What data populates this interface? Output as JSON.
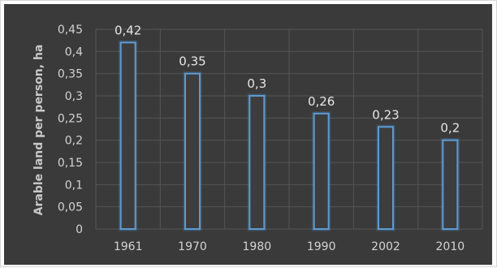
{
  "chart_data": {
    "type": "bar",
    "title": "",
    "xlabel": "",
    "ylabel": "Arable land per person, ha",
    "categories": [
      "1961",
      "1970",
      "1980",
      "1990",
      "2002",
      "2010"
    ],
    "values": [
      0.42,
      0.35,
      0.3,
      0.26,
      0.23,
      0.2
    ],
    "data_labels": [
      "0,42",
      "0,35",
      "0,3",
      "0,26",
      "0,23",
      "0,2"
    ],
    "yticks": [
      0,
      0.05,
      0.1,
      0.15,
      0.2,
      0.25,
      0.3,
      0.35,
      0.4,
      0.45
    ],
    "ytick_labels": [
      "0",
      "0,05",
      "0,1",
      "0,15",
      "0,2",
      "0,25",
      "0,3",
      "0,35",
      "0,4",
      "0,45"
    ],
    "ylim": [
      0,
      0.45
    ],
    "grid": true,
    "legend": "none",
    "colors": {
      "background": "#3a3a3a",
      "grid": "#555555",
      "bar_outline": "#5b9bd5",
      "bar_fill": "#3d3d3d",
      "text": "#d4d4d4"
    }
  }
}
